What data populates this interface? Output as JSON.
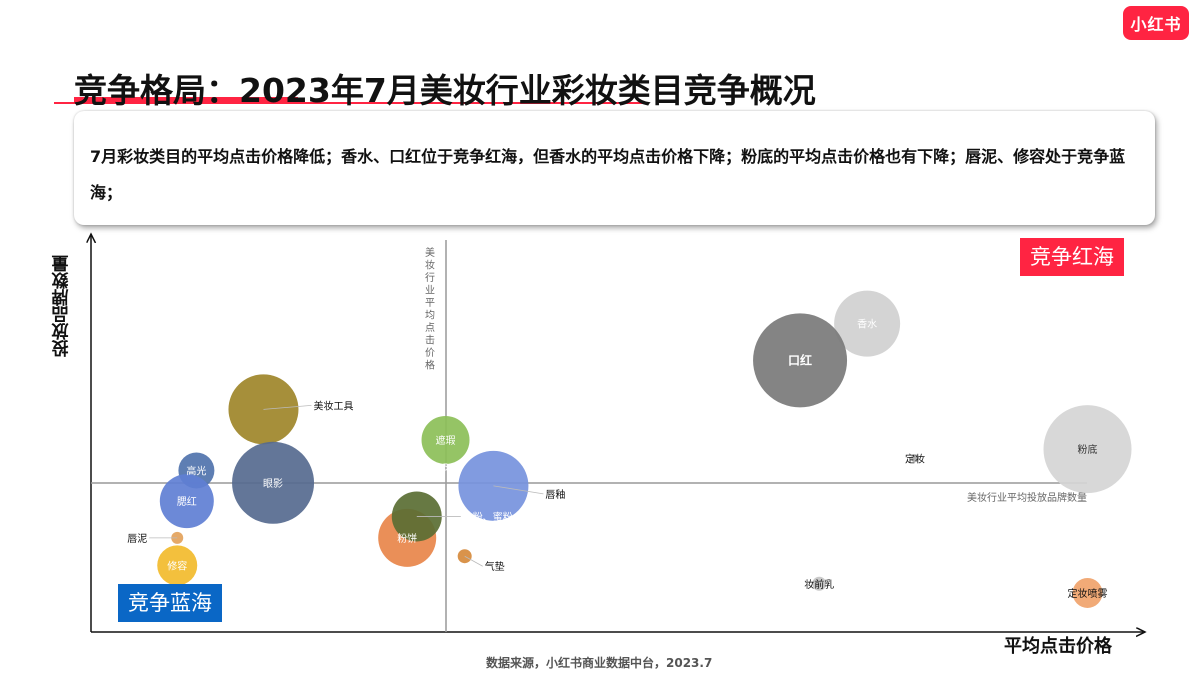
{
  "logo": {
    "text": "小红书"
  },
  "header": {
    "title": "竞争格局：2023年7月美妆行业彩妆类目竞争概况"
  },
  "summary": {
    "text": "7月彩妆类目的平均点击价格降低；香水、口红位于竞争红海，但香水的平均点击价格下降；粉底的平均点击价格也有下降；唇泥、修容处于竞争蓝海；"
  },
  "quadrants": {
    "red_ocean": "竞争红海",
    "blue_ocean": "竞争蓝海"
  },
  "colors": {
    "brand_red": "#ff2442",
    "blue_badge": "#0a67c6",
    "axis_line": "#999999"
  },
  "chart_data": {
    "type": "scatter",
    "subtype": "bubble",
    "xlabel": "平均点击价格",
    "ylabel": "投放品牌数量",
    "v_ref_label": "美妆行业平均点击价格",
    "h_ref_label": "美妆行业平均投放品牌数量",
    "points": [
      {
        "name": "香水",
        "x": 0.81,
        "y": 0.89,
        "r": 33,
        "color": "#d0d0d0",
        "label_color": "#ffffff"
      },
      {
        "name": "口红",
        "x": 0.74,
        "y": 0.77,
        "r": 47,
        "color": "#7a7a7a",
        "label_color": "#ffffff",
        "bold": true
      },
      {
        "name": "粉底",
        "x": 1.04,
        "y": 0.48,
        "r": 44,
        "color": "#d5d5d5",
        "label_color": "#333333"
      },
      {
        "name": "定妆",
        "x": 0.86,
        "y": 0.45,
        "r": 4,
        "color": "#aaaaaa",
        "label_color": "#111111"
      },
      {
        "name": "妆前乳",
        "x": 0.76,
        "y": 0.04,
        "r": 7,
        "color": "#c5c5c5",
        "label_color": "#111111"
      },
      {
        "name": "定妆喷雾",
        "x": 1.04,
        "y": 0.01,
        "r": 15,
        "color": "#f0a36b",
        "label_color": "#111111"
      },
      {
        "name": "美妆工具",
        "x": 0.18,
        "y": 0.61,
        "r": 35,
        "color": "#9e8629",
        "label_color": "#111111"
      },
      {
        "name": "眼影",
        "x": 0.19,
        "y": 0.37,
        "r": 41,
        "color": "#566a8f",
        "label_color": "#ffffff"
      },
      {
        "name": "高光",
        "x": 0.11,
        "y": 0.41,
        "r": 18,
        "color": "#5073ad",
        "label_color": "#ffffff"
      },
      {
        "name": "腮红",
        "x": 0.1,
        "y": 0.31,
        "r": 27,
        "color": "#5f7fd4",
        "label_color": "#ffffff"
      },
      {
        "name": "唇泥",
        "x": 0.09,
        "y": 0.19,
        "r": 6,
        "color": "#e3a25b",
        "label_color": "#111111"
      },
      {
        "name": "修容",
        "x": 0.09,
        "y": 0.1,
        "r": 20,
        "color": "#f2bb2c",
        "label_color": "#ffffff"
      },
      {
        "name": "遮瑕",
        "x": 0.37,
        "y": 0.51,
        "r": 24,
        "color": "#8cbf58",
        "label_color": "#ffffff"
      },
      {
        "name": "粉饼",
        "x": 0.33,
        "y": 0.19,
        "r": 29,
        "color": "#e8864a",
        "label_color": "#ffffff"
      },
      {
        "name": "散粉、蜜粉",
        "x": 0.34,
        "y": 0.26,
        "r": 25,
        "color": "#5a6e33",
        "label_color": "#ffffff"
      },
      {
        "name": "气垫",
        "x": 0.39,
        "y": 0.13,
        "r": 7,
        "color": "#d68a3c",
        "label_color": "#111111"
      },
      {
        "name": "唇釉",
        "x": 0.42,
        "y": 0.36,
        "r": 35,
        "color": "#7693dd",
        "label_color": "#111111"
      }
    ],
    "annotations": [
      "150"
    ]
  },
  "source": "数据来源，小红书商业数据中台，2023.7"
}
